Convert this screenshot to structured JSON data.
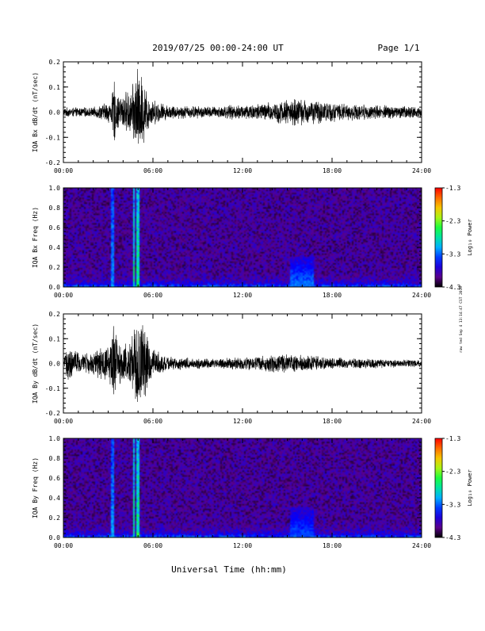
{
  "header": {
    "date_range": "2019/07/25  00:00-24:00 UT",
    "page": "Page 1/1"
  },
  "footer": {
    "xlabel": "Universal Time (hh:mm)"
  },
  "side_note": "raw ted Sep 4 13:14:47 CST 2019",
  "colorbar": {
    "title": "Log₁₀ Power",
    "ticks": [
      "-1.3",
      "-2.3",
      "-3.3",
      "-4.3"
    ]
  },
  "chart_data": [
    {
      "type": "line",
      "ylabel": "IQA Bx dB/dt (nT/sec)",
      "ylim": [
        -0.2,
        0.2
      ],
      "yticks": [
        "0.2",
        "0.1",
        "0.0",
        "-0.1",
        "-0.2"
      ],
      "xlim": [
        0,
        24
      ],
      "xticks": [
        "00:00",
        "06:00",
        "12:00",
        "18:00",
        "24:00"
      ],
      "x_unit": "hours UT",
      "envelope": [
        {
          "x": 0,
          "amp": 0.02
        },
        {
          "x": 2,
          "amp": 0.02
        },
        {
          "x": 3.2,
          "amp": 0.05
        },
        {
          "x": 3.4,
          "amp": 0.14
        },
        {
          "x": 3.6,
          "amp": 0.07
        },
        {
          "x": 4.6,
          "amp": 0.1
        },
        {
          "x": 4.9,
          "amp": 0.2
        },
        {
          "x": 5.3,
          "amp": 0.15
        },
        {
          "x": 5.8,
          "amp": 0.06
        },
        {
          "x": 7,
          "amp": 0.03
        },
        {
          "x": 10,
          "amp": 0.025
        },
        {
          "x": 13.5,
          "amp": 0.04
        },
        {
          "x": 15.5,
          "amp": 0.06
        },
        {
          "x": 17,
          "amp": 0.05
        },
        {
          "x": 19,
          "amp": 0.035
        },
        {
          "x": 24,
          "amp": 0.025
        }
      ]
    },
    {
      "type": "heatmap",
      "ylabel": "IQA Bx Freq (Hz)",
      "ylim": [
        0,
        1.0
      ],
      "yticks": [
        "1.0",
        "0.8",
        "0.6",
        "0.4",
        "0.2",
        "0.0"
      ],
      "xlim": [
        0,
        24
      ],
      "xticks": [
        "00:00",
        "06:00",
        "12:00",
        "18:00",
        "24:00"
      ],
      "zlim": [
        -4.3,
        -1.3
      ],
      "features": [
        {
          "x": 3.3,
          "width": 0.2,
          "fmax": 1.0,
          "level": -3.0
        },
        {
          "x": 4.7,
          "width": 0.2,
          "fmax": 1.0,
          "level": -2.5
        },
        {
          "x": 5.0,
          "width": 0.2,
          "fmax": 1.0,
          "level": -2.4
        },
        {
          "x": 16.0,
          "width": 1.5,
          "fmax": 0.3,
          "level": -3.3
        }
      ]
    },
    {
      "type": "line",
      "ylabel": "IQA By dB/dt (nT/sec)",
      "ylim": [
        -0.2,
        0.2
      ],
      "yticks": [
        "0.2",
        "0.1",
        "0.0",
        "-0.1",
        "-0.2"
      ],
      "xlim": [
        0,
        24
      ],
      "xticks": [
        "00:00",
        "06:00",
        "12:00",
        "18:00",
        "24:00"
      ],
      "x_unit": "hours UT",
      "envelope": [
        {
          "x": 0,
          "amp": 0.03
        },
        {
          "x": 0.4,
          "amp": 0.08
        },
        {
          "x": 1.2,
          "amp": 0.04
        },
        {
          "x": 2,
          "amp": 0.05
        },
        {
          "x": 3.2,
          "amp": 0.1
        },
        {
          "x": 3.4,
          "amp": 0.2
        },
        {
          "x": 3.7,
          "amp": 0.08
        },
        {
          "x": 4.6,
          "amp": 0.12
        },
        {
          "x": 4.9,
          "amp": 0.2
        },
        {
          "x": 5.3,
          "amp": 0.18
        },
        {
          "x": 5.9,
          "amp": 0.07
        },
        {
          "x": 7,
          "amp": 0.03
        },
        {
          "x": 10,
          "amp": 0.02
        },
        {
          "x": 13.5,
          "amp": 0.035
        },
        {
          "x": 15.5,
          "amp": 0.04
        },
        {
          "x": 18,
          "amp": 0.025
        },
        {
          "x": 24,
          "amp": 0.015
        }
      ]
    },
    {
      "type": "heatmap",
      "ylabel": "IQA By Freq (Hz)",
      "ylim": [
        0,
        1.0
      ],
      "yticks": [
        "1.0",
        "0.8",
        "0.6",
        "0.4",
        "0.2",
        "0.0"
      ],
      "xlim": [
        0,
        24
      ],
      "xticks": [
        "00:00",
        "06:00",
        "12:00",
        "18:00",
        "24:00"
      ],
      "zlim": [
        -4.3,
        -1.3
      ],
      "features": [
        {
          "x": 3.3,
          "width": 0.2,
          "fmax": 1.0,
          "level": -3.0
        },
        {
          "x": 4.7,
          "width": 0.2,
          "fmax": 1.0,
          "level": -2.5
        },
        {
          "x": 5.0,
          "width": 0.2,
          "fmax": 1.0,
          "level": -2.4
        },
        {
          "x": 16.0,
          "width": 1.5,
          "fmax": 0.3,
          "level": -3.4
        }
      ]
    }
  ]
}
